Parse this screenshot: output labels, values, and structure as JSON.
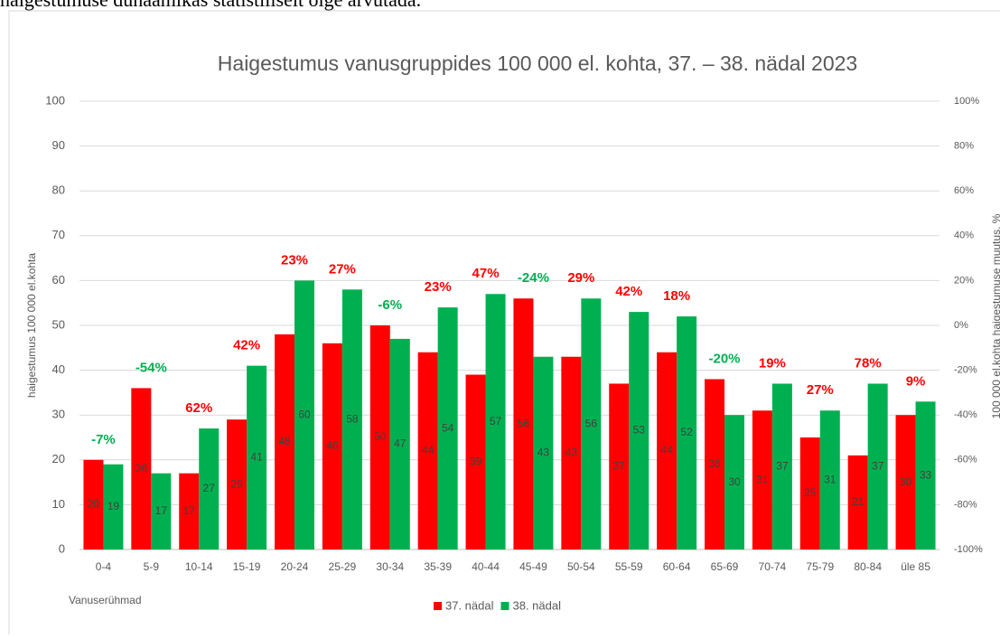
{
  "top_text": "haigestumuse dünaamikas statistiliselt õige arvutada.",
  "chart_data": {
    "type": "bar",
    "title": "Haigestumus vanusgruppides 100 000 el. kohta, 37. – 38. nädal 2023",
    "ylabel": "haigestumus 100 000 el.kohta",
    "y2label": "100 000 el.kohta haigestumuse muutus, %",
    "xlabel": "Vanuserühmad",
    "categories": [
      "0-4",
      "5-9",
      "10-14",
      "15-19",
      "20-24",
      "25-29",
      "30-34",
      "35-39",
      "40-44",
      "45-49",
      "50-54",
      "55-59",
      "60-64",
      "65-69",
      "70-74",
      "75-79",
      "80-84",
      "üle 85"
    ],
    "series": [
      {
        "name": "37. nädal",
        "color": "#ff0000",
        "values": [
          20,
          36,
          17,
          29,
          48,
          46,
          50,
          44,
          39,
          56,
          43,
          37,
          44,
          38,
          31,
          25,
          21,
          30
        ]
      },
      {
        "name": "38. nädal",
        "color": "#00b050",
        "values": [
          19,
          17,
          27,
          41,
          60,
          58,
          47,
          54,
          57,
          43,
          56,
          53,
          52,
          30,
          37,
          31,
          37,
          33
        ]
      }
    ],
    "change": {
      "values": [
        -7,
        -54,
        62,
        42,
        23,
        27,
        -6,
        23,
        47,
        -24,
        29,
        42,
        18,
        -20,
        19,
        27,
        78,
        9
      ],
      "value_labels": [
        "-7%",
        "-54%",
        "62%",
        "42%",
        "23%",
        "27%",
        "-6%",
        "23%",
        "47%",
        "-24%",
        "29%",
        "42%",
        "18%",
        "-20%",
        "19%",
        "27%",
        "78%",
        "9%"
      ],
      "positive_color": "#ff0000",
      "negative_color": "#00b050"
    },
    "ylim": [
      0,
      100
    ],
    "yticks": [
      0,
      10,
      20,
      30,
      40,
      50,
      60,
      70,
      80,
      90,
      100
    ],
    "y2lim": [
      -100,
      100
    ],
    "y2ticks": [
      {
        "value": -100,
        "label": "-100%"
      },
      {
        "value": -80,
        "label": "-80%"
      },
      {
        "value": -60,
        "label": "-60%"
      },
      {
        "value": -40,
        "label": "-40%"
      },
      {
        "value": -20,
        "label": "-20%"
      },
      {
        "value": 0,
        "label": "0%"
      },
      {
        "value": 20,
        "label": "20%"
      },
      {
        "value": 40,
        "label": "40%"
      },
      {
        "value": 60,
        "label": "60%"
      },
      {
        "value": 80,
        "label": "80%"
      },
      {
        "value": 100,
        "label": "100%"
      }
    ],
    "grid": true,
    "legend": "bottom"
  }
}
